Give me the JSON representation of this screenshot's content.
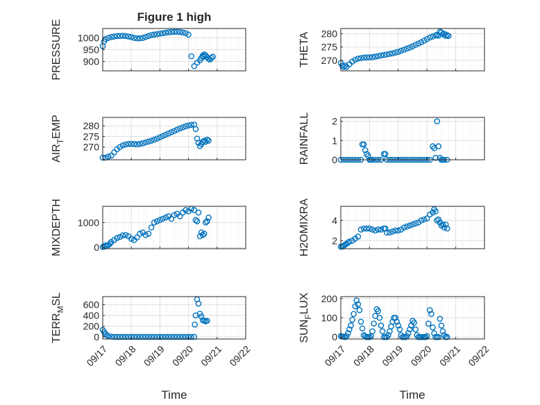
{
  "figure": {
    "title": "Figure 1 high"
  },
  "chart_data": [
    {
      "type": "scatter",
      "ylabel": "PRESSURE",
      "ylim": [
        860,
        1040
      ],
      "yticks": [
        900,
        950,
        1000
      ],
      "xlim": [
        0,
        5
      ],
      "grid": true,
      "marker": "open-circle",
      "color": "#0072BD",
      "series": [
        {
          "x": [
            0.0,
            0.05,
            0.1,
            0.2,
            0.3,
            0.4,
            0.5,
            0.6,
            0.7,
            0.8,
            0.9,
            1.0,
            1.1,
            1.2,
            1.3,
            1.4,
            1.5,
            1.6,
            1.7,
            1.8,
            1.9,
            2.0,
            2.1,
            2.2,
            2.3,
            2.4,
            2.5,
            2.6,
            2.7,
            2.8,
            2.9,
            3.0,
            3.1,
            3.2,
            3.3,
            3.4,
            3.45,
            3.5,
            3.52,
            3.55,
            3.6,
            3.65,
            3.7,
            3.75,
            3.8,
            3.85
          ],
          "y": [
            965,
            985,
            995,
            1000,
            1004,
            1006,
            1008,
            1008,
            1009,
            1008,
            1006,
            1004,
            1000,
            998,
            998,
            1000,
            1004,
            1008,
            1012,
            1014,
            1016,
            1018,
            1020,
            1022,
            1024,
            1025,
            1026,
            1026,
            1025,
            1023,
            1020,
            1014,
            922,
            880,
            895,
            905,
            915,
            925,
            920,
            930,
            925,
            918,
            912,
            908,
            915,
            920
          ]
        }
      ]
    },
    {
      "type": "scatter",
      "ylabel": "THETA",
      "ylim": [
        266,
        282
      ],
      "yticks": [
        270,
        275,
        280
      ],
      "xlim": [
        0,
        5
      ],
      "grid": true,
      "marker": "open-circle",
      "color": "#0072BD",
      "series": [
        {
          "x": [
            0.0,
            0.05,
            0.1,
            0.15,
            0.2,
            0.3,
            0.4,
            0.5,
            0.6,
            0.7,
            0.8,
            0.9,
            1.0,
            1.1,
            1.2,
            1.3,
            1.4,
            1.5,
            1.6,
            1.7,
            1.8,
            1.9,
            2.0,
            2.1,
            2.2,
            2.3,
            2.4,
            2.5,
            2.6,
            2.7,
            2.8,
            2.9,
            3.0,
            3.1,
            3.2,
            3.3,
            3.35,
            3.4,
            3.45,
            3.5,
            3.55,
            3.6,
            3.65,
            3.7,
            3.75
          ],
          "y": [
            269,
            268,
            267.5,
            268,
            267.5,
            268.5,
            269.5,
            270.2,
            270.6,
            270.8,
            271,
            271.1,
            271.1,
            271.2,
            271.4,
            271.6,
            271.8,
            272,
            272.2,
            272.4,
            272.6,
            272.9,
            273.2,
            273.6,
            274,
            274.4,
            274.8,
            275.3,
            275.8,
            276.3,
            276.8,
            277.4,
            278,
            278.6,
            279,
            279.4,
            279.6,
            279.3,
            280.8,
            280.5,
            279.8,
            280,
            279.2,
            279.5,
            279.2
          ]
        }
      ]
    },
    {
      "type": "scatter",
      "ylabel": "AIR_TEMP",
      "ylim": [
        264,
        284
      ],
      "yticks": [
        270,
        275,
        280
      ],
      "xlim": [
        0,
        5
      ],
      "grid": true,
      "marker": "open-circle",
      "color": "#0072BD",
      "series": [
        {
          "x": [
            0.0,
            0.1,
            0.2,
            0.3,
            0.4,
            0.5,
            0.6,
            0.7,
            0.8,
            0.9,
            1.0,
            1.1,
            1.2,
            1.3,
            1.4,
            1.5,
            1.6,
            1.7,
            1.8,
            1.9,
            2.0,
            2.1,
            2.2,
            2.3,
            2.4,
            2.5,
            2.6,
            2.7,
            2.8,
            2.9,
            3.0,
            3.1,
            3.2,
            3.25,
            3.3,
            3.35,
            3.4,
            3.45,
            3.5,
            3.55,
            3.6,
            3.65,
            3.7
          ],
          "y": [
            265,
            265,
            265.5,
            266,
            267.5,
            269,
            270,
            270.8,
            271.2,
            271.5,
            271.5,
            271.4,
            271.3,
            271.5,
            271.8,
            272.2,
            272.6,
            273,
            273.5,
            274,
            274.6,
            275.2,
            275.8,
            276.4,
            277,
            277.6,
            278.2,
            278.8,
            279.3,
            279.8,
            280.2,
            280.5,
            280.6,
            278.5,
            274,
            272,
            270.5,
            271.5,
            272.5,
            273,
            272.5,
            273.5,
            273
          ]
        }
      ]
    },
    {
      "type": "scatter",
      "ylabel": "RAINFALL",
      "ylim": [
        0,
        2.2
      ],
      "yticks": [
        0,
        1,
        2
      ],
      "xlim": [
        0,
        5
      ],
      "grid": true,
      "marker": "open-circle",
      "color": "#0072BD",
      "series": [
        {
          "x": [
            0.0,
            0.1,
            0.2,
            0.3,
            0.4,
            0.5,
            0.6,
            0.7,
            0.75,
            0.8,
            0.85,
            0.9,
            0.95,
            1.0,
            1.05,
            1.1,
            1.2,
            1.3,
            1.4,
            1.5,
            1.55,
            1.6,
            1.7,
            1.8,
            1.9,
            2.0,
            2.1,
            2.2,
            2.3,
            2.4,
            2.5,
            2.6,
            2.7,
            2.8,
            2.9,
            3.0,
            3.1,
            3.2,
            3.25,
            3.3,
            3.35,
            3.4,
            3.45,
            3.5,
            3.55,
            3.6,
            3.7
          ],
          "y": [
            0,
            0,
            0,
            0,
            0,
            0,
            0,
            0,
            0.8,
            0.8,
            0.5,
            0.3,
            0.2,
            0,
            0,
            0,
            0,
            0,
            0,
            0.3,
            0.3,
            0,
            0,
            0,
            0,
            0,
            0,
            0,
            0,
            0,
            0,
            0,
            0,
            0,
            0,
            0,
            0,
            0.7,
            0.6,
            0.1,
            2.0,
            0.7,
            0.1,
            0,
            0,
            0,
            0
          ]
        }
      ]
    },
    {
      "type": "scatter",
      "ylabel": "MIXDEPTH",
      "ylim": [
        -50,
        1650
      ],
      "yticks": [
        0,
        1000
      ],
      "xlim": [
        0,
        5
      ],
      "grid": true,
      "marker": "open-circle",
      "color": "#0072BD",
      "series": [
        {
          "x": [
            0.0,
            0.05,
            0.1,
            0.15,
            0.2,
            0.25,
            0.3,
            0.4,
            0.5,
            0.6,
            0.7,
            0.8,
            0.9,
            1.0,
            1.1,
            1.2,
            1.3,
            1.4,
            1.5,
            1.6,
            1.7,
            1.8,
            1.9,
            2.0,
            2.1,
            2.2,
            2.3,
            2.4,
            2.5,
            2.6,
            2.7,
            2.8,
            2.9,
            3.0,
            3.1,
            3.2,
            3.25,
            3.3,
            3.35,
            3.4,
            3.45,
            3.5,
            3.55,
            3.6,
            3.65,
            3.7
          ],
          "y": [
            20,
            30,
            80,
            60,
            100,
            150,
            220,
            300,
            380,
            420,
            480,
            500,
            450,
            350,
            300,
            400,
            550,
            600,
            500,
            550,
            800,
            1000,
            1050,
            1100,
            1150,
            1200,
            1250,
            1150,
            1300,
            1350,
            1250,
            1400,
            1500,
            1450,
            1550,
            1500,
            1100,
            1050,
            1400,
            450,
            600,
            500,
            550,
            1000,
            1050,
            1200
          ]
        }
      ]
    },
    {
      "type": "scatter",
      "ylabel": "H2OMIXRA",
      "ylim": [
        1.2,
        5.4
      ],
      "yticks": [
        2,
        4
      ],
      "xlim": [
        0,
        5
      ],
      "grid": true,
      "marker": "open-circle",
      "color": "#0072BD",
      "series": [
        {
          "x": [
            0.0,
            0.05,
            0.1,
            0.15,
            0.2,
            0.25,
            0.3,
            0.4,
            0.5,
            0.6,
            0.7,
            0.8,
            0.9,
            1.0,
            1.1,
            1.2,
            1.3,
            1.4,
            1.5,
            1.55,
            1.6,
            1.7,
            1.8,
            1.9,
            2.0,
            2.1,
            2.2,
            2.3,
            2.4,
            2.5,
            2.6,
            2.7,
            2.8,
            2.9,
            3.0,
            3.1,
            3.2,
            3.25,
            3.3,
            3.35,
            3.4,
            3.45,
            3.5,
            3.55,
            3.6,
            3.65,
            3.7
          ],
          "y": [
            1.4,
            1.4,
            1.5,
            1.6,
            1.7,
            1.8,
            1.9,
            2.0,
            2.2,
            2.4,
            3.1,
            3.2,
            3.2,
            3.2,
            3.1,
            3.0,
            3.1,
            3.1,
            3.2,
            3.2,
            2.8,
            2.8,
            2.9,
            3.0,
            3.0,
            3.1,
            3.3,
            3.4,
            3.5,
            3.6,
            3.7,
            3.8,
            4.0,
            4.1,
            4.2,
            4.6,
            4.8,
            5.1,
            4.9,
            4.0,
            4.1,
            3.8,
            3.5,
            3.6,
            3.3,
            3.6,
            3.2
          ]
        }
      ]
    },
    {
      "type": "scatter",
      "ylabel": "TERR_MSL",
      "ylim": [
        -40,
        750
      ],
      "yticks": [
        0,
        200,
        400,
        600
      ],
      "xlim": [
        0,
        5
      ],
      "grid": true,
      "marker": "open-circle",
      "color": "#0072BD",
      "series": [
        {
          "x": [
            0.0,
            0.05,
            0.1,
            0.15,
            0.2,
            0.3,
            0.4,
            0.5,
            0.6,
            0.7,
            0.8,
            0.9,
            1.0,
            1.1,
            1.2,
            1.3,
            1.4,
            1.5,
            1.6,
            1.7,
            1.8,
            1.9,
            2.0,
            2.1,
            2.2,
            2.3,
            2.4,
            2.5,
            2.6,
            2.7,
            2.8,
            2.9,
            3.0,
            3.1,
            3.2,
            3.22,
            3.25,
            3.3,
            3.35,
            3.4,
            3.45,
            3.5,
            3.55,
            3.6,
            3.65
          ],
          "y": [
            130,
            90,
            50,
            30,
            10,
            5,
            0,
            0,
            0,
            0,
            0,
            0,
            0,
            0,
            0,
            0,
            0,
            0,
            0,
            0,
            0,
            0,
            0,
            0,
            0,
            0,
            0,
            0,
            0,
            0,
            0,
            0,
            0,
            0,
            0,
            230,
            400,
            700,
            620,
            430,
            380,
            310,
            300,
            290,
            300
          ]
        }
      ]
    },
    {
      "type": "scatter",
      "ylabel": "SUN_FLUX",
      "ylim": [
        -10,
        210
      ],
      "yticks": [
        0,
        100,
        200
      ],
      "xlim": [
        0,
        5
      ],
      "grid": true,
      "marker": "open-circle",
      "color": "#0072BD",
      "series": [
        {
          "x": [
            0.0,
            0.05,
            0.1,
            0.15,
            0.2,
            0.25,
            0.3,
            0.35,
            0.4,
            0.45,
            0.5,
            0.55,
            0.6,
            0.65,
            0.7,
            0.75,
            0.8,
            0.85,
            0.9,
            0.95,
            1.0,
            1.05,
            1.1,
            1.15,
            1.2,
            1.25,
            1.3,
            1.35,
            1.4,
            1.45,
            1.5,
            1.55,
            1.6,
            1.65,
            1.7,
            1.75,
            1.8,
            1.85,
            1.9,
            1.95,
            2.0,
            2.05,
            2.1,
            2.15,
            2.2,
            2.25,
            2.3,
            2.35,
            2.4,
            2.45,
            2.5,
            2.55,
            2.6,
            2.65,
            2.7,
            2.75,
            2.8,
            2.85,
            2.9,
            2.95,
            3.0,
            3.05,
            3.1,
            3.15,
            3.2,
            3.25,
            3.3,
            3.35,
            3.4,
            3.45,
            3.5,
            3.55,
            3.6,
            3.65,
            3.7
          ],
          "y": [
            5,
            3,
            2,
            0,
            5,
            20,
            40,
            60,
            90,
            120,
            160,
            190,
            170,
            140,
            80,
            45,
            10,
            5,
            0,
            0,
            0,
            5,
            30,
            70,
            110,
            145,
            135,
            100,
            60,
            30,
            0,
            0,
            0,
            10,
            30,
            55,
            80,
            100,
            100,
            80,
            60,
            40,
            10,
            0,
            0,
            0,
            5,
            20,
            40,
            60,
            85,
            75,
            40,
            10,
            0,
            0,
            0,
            0,
            0,
            0,
            5,
            70,
            140,
            120,
            50,
            20,
            0,
            0,
            0,
            95,
            60,
            30,
            10,
            0,
            0
          ]
        }
      ]
    }
  ],
  "shared_axes": {
    "x_tick_labels": [
      "09/17",
      "09/18",
      "09/19",
      "09/20",
      "09/21",
      "09/22"
    ],
    "x_label": "Time"
  },
  "colors": {
    "marker": "#0072BD",
    "axis": "#262626",
    "grid": "#dfdfdf"
  }
}
